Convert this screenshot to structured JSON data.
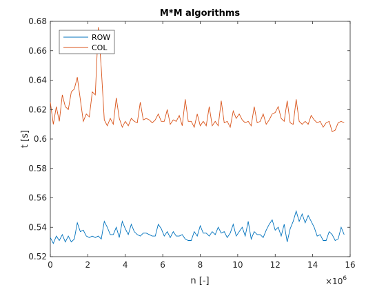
{
  "chart_data": {
    "type": "line",
    "title": "M*M algorithms",
    "xlabel": "n [-]",
    "ylabel": "t [s]",
    "x_exponent_base": "×10",
    "x_exponent_power": "6",
    "xlim": [
      0,
      16
    ],
    "ylim": [
      0.52,
      0.68
    ],
    "x_ticks": [
      0,
      2,
      4,
      6,
      8,
      10,
      12,
      14,
      16
    ],
    "x_tick_labels": [
      "0",
      "2",
      "4",
      "6",
      "8",
      "10",
      "12",
      "14",
      "16"
    ],
    "y_ticks": [
      0.52,
      0.54,
      0.56,
      0.58,
      0.6,
      0.62,
      0.64,
      0.66,
      0.68
    ],
    "y_tick_labels": [
      "0.52",
      "0.54",
      "0.56",
      "0.58",
      "0.6",
      "0.62",
      "0.64",
      "0.66",
      "0.68"
    ],
    "grid": false,
    "legend_position": "top-left",
    "x": [
      0.0,
      0.16,
      0.32,
      0.48,
      0.64,
      0.8,
      0.96,
      1.12,
      1.28,
      1.44,
      1.6,
      1.76,
      1.92,
      2.08,
      2.24,
      2.4,
      2.56,
      2.72,
      2.88,
      3.04,
      3.2,
      3.36,
      3.52,
      3.68,
      3.84,
      4.0,
      4.16,
      4.32,
      4.48,
      4.64,
      4.8,
      4.96,
      5.12,
      5.28,
      5.44,
      5.6,
      5.76,
      5.92,
      6.08,
      6.24,
      6.4,
      6.56,
      6.72,
      6.88,
      7.04,
      7.2,
      7.36,
      7.52,
      7.68,
      7.84,
      8.0,
      8.16,
      8.32,
      8.48,
      8.64,
      8.8,
      8.96,
      9.12,
      9.28,
      9.44,
      9.6,
      9.76,
      9.92,
      10.08,
      10.24,
      10.4,
      10.56,
      10.72,
      10.88,
      11.04,
      11.2,
      11.36,
      11.52,
      11.68,
      11.84,
      12.0,
      12.16,
      12.32,
      12.48,
      12.64,
      12.8,
      12.96,
      13.12,
      13.28,
      13.44,
      13.6,
      13.76,
      13.92,
      14.08,
      14.24,
      14.4,
      14.56,
      14.72,
      14.88,
      15.04,
      15.2,
      15.36,
      15.52,
      15.68
    ],
    "series": [
      {
        "name": "ROW",
        "color": "#0072BD",
        "values": [
          0.533,
          0.529,
          0.534,
          0.531,
          0.535,
          0.53,
          0.534,
          0.53,
          0.532,
          0.543,
          0.537,
          0.538,
          0.534,
          0.533,
          0.534,
          0.533,
          0.534,
          0.532,
          0.544,
          0.54,
          0.535,
          0.535,
          0.54,
          0.533,
          0.544,
          0.539,
          0.535,
          0.542,
          0.537,
          0.535,
          0.534,
          0.536,
          0.536,
          0.535,
          0.534,
          0.534,
          0.542,
          0.539,
          0.534,
          0.537,
          0.533,
          0.537,
          0.534,
          0.534,
          0.535,
          0.532,
          0.531,
          0.531,
          0.537,
          0.534,
          0.541,
          0.536,
          0.536,
          0.534,
          0.537,
          0.535,
          0.54,
          0.536,
          0.537,
          0.533,
          0.536,
          0.542,
          0.534,
          0.537,
          0.54,
          0.534,
          0.544,
          0.532,
          0.537,
          0.535,
          0.535,
          0.533,
          0.538,
          0.542,
          0.545,
          0.538,
          0.54,
          0.534,
          0.542,
          0.53,
          0.539,
          0.544,
          0.551,
          0.544,
          0.549,
          0.543,
          0.548,
          0.544,
          0.54,
          0.534,
          0.535,
          0.531,
          0.531,
          0.537,
          0.535,
          0.531,
          0.532,
          0.54,
          0.535
        ]
      },
      {
        "name": "COL",
        "color": "#D95319",
        "values": [
          0.625,
          0.61,
          0.622,
          0.612,
          0.63,
          0.622,
          0.62,
          0.632,
          0.634,
          0.642,
          0.627,
          0.612,
          0.617,
          0.615,
          0.632,
          0.63,
          0.676,
          0.648,
          0.613,
          0.609,
          0.614,
          0.61,
          0.628,
          0.614,
          0.608,
          0.612,
          0.609,
          0.614,
          0.612,
          0.611,
          0.625,
          0.613,
          0.614,
          0.613,
          0.611,
          0.613,
          0.617,
          0.612,
          0.612,
          0.62,
          0.61,
          0.613,
          0.612,
          0.616,
          0.609,
          0.627,
          0.612,
          0.612,
          0.608,
          0.617,
          0.609,
          0.612,
          0.609,
          0.622,
          0.609,
          0.612,
          0.609,
          0.626,
          0.611,
          0.612,
          0.608,
          0.619,
          0.614,
          0.617,
          0.613,
          0.611,
          0.612,
          0.609,
          0.622,
          0.611,
          0.612,
          0.617,
          0.61,
          0.613,
          0.617,
          0.618,
          0.622,
          0.614,
          0.612,
          0.626,
          0.611,
          0.61,
          0.627,
          0.612,
          0.61,
          0.612,
          0.61,
          0.616,
          0.613,
          0.611,
          0.612,
          0.608,
          0.611,
          0.612,
          0.605,
          0.606,
          0.611,
          0.612,
          0.611
        ]
      }
    ]
  }
}
